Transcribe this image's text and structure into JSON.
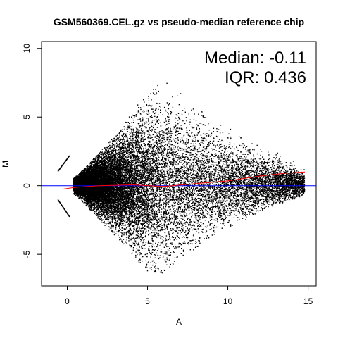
{
  "chart_data": {
    "type": "scatter",
    "title": "GSM560369.CEL.gz vs pseudo-median reference chip",
    "xlabel": "A",
    "ylabel": "M",
    "xlim": [
      -1.6,
      15.5
    ],
    "ylim": [
      -7.3,
      10.5
    ],
    "x_ticks": [
      0,
      5,
      10,
      15
    ],
    "y_ticks": [
      -5,
      0,
      5,
      10
    ],
    "x_tick_labels": [
      "0",
      "5",
      "10",
      "15"
    ],
    "y_tick_labels": [
      "-5",
      "0",
      "5",
      "10"
    ],
    "annotations": {
      "median": "Median: -0.11",
      "iqr": "IQR: 0.436"
    },
    "reference_line": {
      "y": 0,
      "color": "#0000ff"
    },
    "loess_fit": {
      "color": "#ff0000",
      "points": [
        [
          -0.3,
          -0.25
        ],
        [
          0.5,
          -0.12
        ],
        [
          2,
          0.0
        ],
        [
          4,
          0.06
        ],
        [
          6,
          -0.05
        ],
        [
          8,
          0.15
        ],
        [
          10,
          0.35
        ],
        [
          12,
          0.7
        ],
        [
          13.5,
          0.9
        ],
        [
          14.8,
          1.0
        ]
      ]
    },
    "density_profile": {
      "A": [
        0.3,
        1,
        2,
        3,
        4,
        5,
        6,
        7,
        8,
        9,
        10,
        11,
        12,
        13,
        14,
        14.8
      ],
      "M_upper": [
        0.4,
        1.0,
        2.0,
        3.0,
        4.3,
        5.5,
        6.2,
        5.5,
        4.6,
        4.0,
        3.5,
        3.0,
        2.5,
        2.0,
        1.5,
        1.0
      ],
      "M_lower": [
        -0.4,
        -1.0,
        -2.0,
        -3.0,
        -4.0,
        -5.0,
        -5.2,
        -4.3,
        -3.6,
        -3.0,
        -2.4,
        -2.0,
        -1.5,
        -1.1,
        -0.8,
        -0.5
      ],
      "marker_color": "#000000"
    },
    "outlier_streaks": [
      {
        "x": [
          -0.6,
          0.1
        ],
        "y": [
          1.1,
          2.2
        ]
      },
      {
        "x": [
          -0.6,
          0.1
        ],
        "y": [
          -1.0,
          -2.2
        ]
      }
    ],
    "grid": false,
    "legend": "none"
  }
}
